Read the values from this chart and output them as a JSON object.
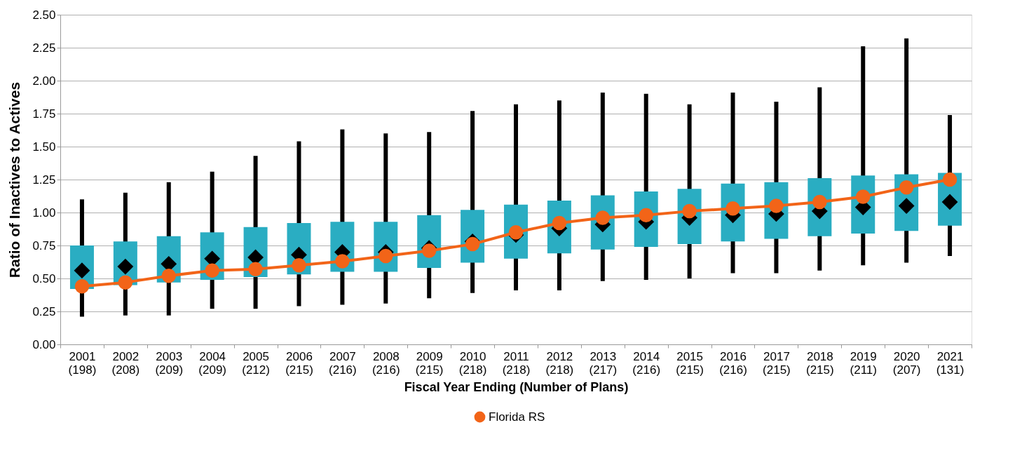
{
  "chart_data": {
    "type": "box",
    "xlabel": "Fiscal Year Ending (Number of Plans)",
    "ylabel": "Ratio of Inactives to Actives",
    "categories": [
      "2001\n(198)",
      "2002\n(208)",
      "2003\n(209)",
      "2004\n(209)",
      "2005\n(212)",
      "2006\n(215)",
      "2007\n(216)",
      "2008\n(216)",
      "2009\n(215)",
      "2010\n(218)",
      "2011\n(218)",
      "2012\n(218)",
      "2013\n(217)",
      "2014\n(216)",
      "2015\n(215)",
      "2016\n(216)",
      "2017\n(215)",
      "2018\n(215)",
      "2019\n(211)",
      "2020\n(207)",
      "2021\n(131)"
    ],
    "ylim": [
      0,
      2.5
    ],
    "yticks": [
      {
        "value": 0,
        "label": "0.00"
      },
      {
        "value": 0.25,
        "label": "0.25"
      },
      {
        "value": 0.5,
        "label": "0.50"
      },
      {
        "value": 0.75,
        "label": "0.75"
      },
      {
        "value": 1,
        "label": "1.00"
      },
      {
        "value": 1.25,
        "label": "1.25"
      },
      {
        "value": 1.5,
        "label": "1.50"
      },
      {
        "value": 1.75,
        "label": "1.75"
      },
      {
        "value": 2,
        "label": "2.00"
      },
      {
        "value": 2.25,
        "label": "2.25"
      },
      {
        "value": 2.5,
        "label": "2.50"
      }
    ],
    "grid": "y",
    "legend": "bottom",
    "series": [
      {
        "color": "#2aadc2",
        "boxes": [
          {
            "low": 0.21,
            "q1": 0.42,
            "median": 0.56,
            "q3": 0.75,
            "high": 1.1
          },
          {
            "low": 0.22,
            "q1": 0.45,
            "median": 0.59,
            "q3": 0.78,
            "high": 1.15
          },
          {
            "low": 0.22,
            "q1": 0.47,
            "median": 0.61,
            "q3": 0.82,
            "high": 1.23
          },
          {
            "low": 0.27,
            "q1": 0.49,
            "median": 0.65,
            "q3": 0.85,
            "high": 1.31
          },
          {
            "low": 0.27,
            "q1": 0.51,
            "median": 0.66,
            "q3": 0.89,
            "high": 1.43
          },
          {
            "low": 0.29,
            "q1": 0.53,
            "median": 0.68,
            "q3": 0.92,
            "high": 1.54
          },
          {
            "low": 0.3,
            "q1": 0.55,
            "median": 0.7,
            "q3": 0.93,
            "high": 1.63
          },
          {
            "low": 0.31,
            "q1": 0.55,
            "median": 0.7,
            "q3": 0.93,
            "high": 1.6
          },
          {
            "low": 0.35,
            "q1": 0.58,
            "median": 0.73,
            "q3": 0.98,
            "high": 1.61
          },
          {
            "low": 0.39,
            "q1": 0.62,
            "median": 0.78,
            "q3": 1.02,
            "high": 1.77
          },
          {
            "low": 0.41,
            "q1": 0.65,
            "median": 0.83,
            "q3": 1.06,
            "high": 1.82
          },
          {
            "low": 0.41,
            "q1": 0.69,
            "median": 0.88,
            "q3": 1.09,
            "high": 1.85
          },
          {
            "low": 0.48,
            "q1": 0.72,
            "median": 0.91,
            "q3": 1.13,
            "high": 1.91
          },
          {
            "low": 0.49,
            "q1": 0.74,
            "median": 0.93,
            "q3": 1.16,
            "high": 1.9
          },
          {
            "low": 0.5,
            "q1": 0.76,
            "median": 0.96,
            "q3": 1.18,
            "high": 1.82
          },
          {
            "low": 0.54,
            "q1": 0.78,
            "median": 0.98,
            "q3": 1.22,
            "high": 1.91
          },
          {
            "low": 0.54,
            "q1": 0.8,
            "median": 0.99,
            "q3": 1.23,
            "high": 1.84
          },
          {
            "low": 0.56,
            "q1": 0.82,
            "median": 1.01,
            "q3": 1.26,
            "high": 1.95
          },
          {
            "low": 0.6,
            "q1": 0.84,
            "median": 1.04,
            "q3": 1.28,
            "high": 2.26
          },
          {
            "low": 0.62,
            "q1": 0.86,
            "median": 1.05,
            "q3": 1.29,
            "high": 2.32
          },
          {
            "low": 0.67,
            "q1": 0.9,
            "median": 1.08,
            "q3": 1.3,
            "high": 1.74
          }
        ]
      },
      {
        "type": "line",
        "name": "Florida RS",
        "color": "#f26418",
        "marker": "circle",
        "values": [
          0.44,
          0.47,
          0.52,
          0.56,
          0.57,
          0.6,
          0.63,
          0.67,
          0.71,
          0.76,
          0.85,
          0.92,
          0.96,
          0.98,
          1.01,
          1.03,
          1.05,
          1.08,
          1.12,
          1.19,
          1.25
        ]
      }
    ]
  }
}
